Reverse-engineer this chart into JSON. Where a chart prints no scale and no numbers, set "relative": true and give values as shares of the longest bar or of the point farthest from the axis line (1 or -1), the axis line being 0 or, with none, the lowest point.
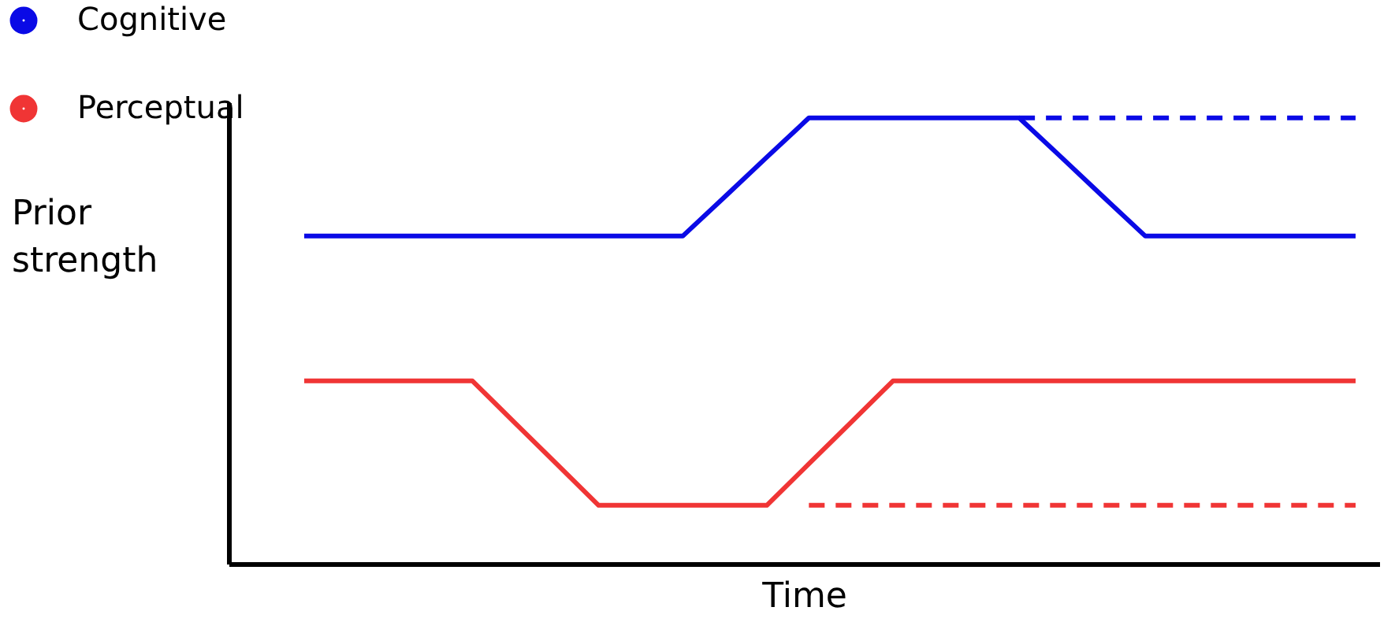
{
  "chart_data": {
    "type": "line",
    "relative": true,
    "xlabel": "Time",
    "ylabel": "Prior strength",
    "legend": "top left",
    "marker": "none",
    "categories": [
      null,
      null,
      null,
      null,
      null,
      null,
      null,
      null,
      null,
      null,
      null,
      null,
      null,
      null,
      null,
      null,
      null,
      null,
      null,
      null,
      null,
      null,
      null,
      null,
      null,
      null
    ],
    "series": [
      {
        "name": "Cognitive",
        "color": "#0a0ae6",
        "line_style": "solid",
        "values": [
          0.735,
          0.735,
          0.735,
          0.735,
          0.735,
          0.735,
          0.735,
          0.735,
          0.735,
          0.735,
          0.823,
          0.912,
          1,
          1,
          1,
          1,
          1,
          1,
          0.912,
          0.823,
          0.735,
          0.735,
          0.735,
          0.735,
          0.735,
          0.735
        ]
      },
      {
        "name": "Perceptual",
        "color": "#f03535",
        "line_style": "solid",
        "values": [
          0.41,
          0.41,
          0.41,
          0.41,
          0.41,
          0.317,
          0.224,
          0.131,
          0.131,
          0.131,
          0.131,
          0.131,
          0.224,
          0.317,
          0.41,
          0.41,
          0.41,
          0.41,
          0.41,
          0.41,
          0.41,
          0.41,
          0.41,
          0.41,
          0.41,
          0.41
        ]
      },
      {
        "color": "#0a0ae6",
        "line_style": "dashed",
        "values": [
          null,
          null,
          null,
          null,
          null,
          null,
          null,
          null,
          null,
          null,
          null,
          null,
          null,
          null,
          null,
          null,
          null,
          1,
          1,
          1,
          1,
          1,
          1,
          1,
          1,
          1
        ]
      },
      {
        "color": "#f03535",
        "line_style": "dashed",
        "values": [
          null,
          null,
          null,
          null,
          null,
          null,
          null,
          null,
          null,
          null,
          null,
          null,
          0.131,
          0.131,
          0.131,
          0.131,
          0.131,
          0.131,
          0.131,
          0.131,
          0.131,
          0.131,
          0.131,
          0.131,
          0.131,
          0.131
        ]
      }
    ]
  }
}
